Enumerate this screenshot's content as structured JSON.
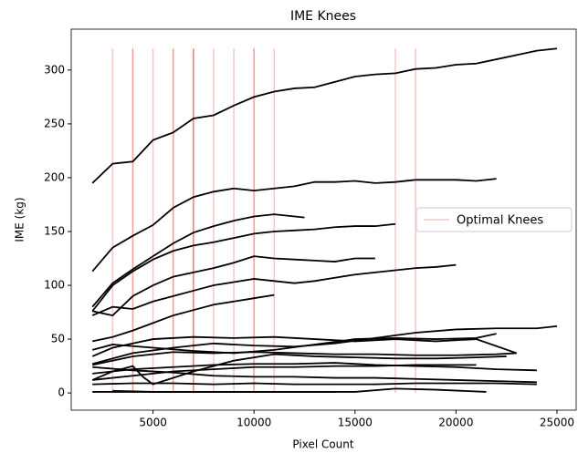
{
  "chart_data": {
    "type": "line",
    "title": "IME Knees",
    "x_label": "Pixel Count",
    "y_label": "IME (kg)",
    "xlim": [
      950,
      25950
    ],
    "ylim": [
      -16,
      338
    ],
    "xticks": [
      5000,
      10000,
      15000,
      20000,
      25000
    ],
    "yticks": [
      0,
      50,
      100,
      150,
      200,
      250,
      300
    ],
    "line_color": "#000000",
    "series": [
      {
        "x": [
          2000,
          3000,
          4000,
          5000,
          6000,
          7000,
          8000,
          9000,
          10000,
          11000,
          12000,
          13000,
          14000,
          15000,
          16000,
          17000,
          18000,
          19000,
          20000,
          21000,
          22000,
          23000,
          24000,
          25000
        ],
        "values": [
          195,
          213,
          215,
          235,
          242,
          255,
          258,
          267,
          275,
          280,
          283,
          284,
          289,
          294,
          296,
          297,
          301,
          302,
          305,
          306,
          310,
          314,
          318,
          320
        ]
      },
      {
        "x": [
          2000,
          3000,
          4000,
          5000,
          6000,
          7000,
          8000,
          9000,
          10000,
          11000,
          12000,
          13000,
          14000,
          15000,
          16000,
          17000,
          18000,
          19000,
          20000,
          21000,
          22000
        ],
        "values": [
          113,
          135,
          146,
          156,
          172,
          182,
          187,
          190,
          188,
          190,
          192,
          196,
          196,
          197,
          195,
          196,
          198,
          198,
          198,
          197,
          199
        ]
      },
      {
        "x": [
          2000,
          3000,
          4000,
          5000,
          6000,
          7000,
          8000,
          9000,
          10000,
          11000,
          12500
        ],
        "values": [
          80,
          102,
          115,
          127,
          139,
          149,
          155,
          160,
          164,
          166,
          163
        ]
      },
      {
        "x": [
          2000,
          3000,
          4000,
          5000,
          6000,
          7000,
          8000,
          9000,
          10000,
          11000,
          12000,
          13000,
          14000,
          15000,
          16000,
          17000
        ],
        "values": [
          76,
          100,
          113,
          124,
          132,
          137,
          140,
          144,
          148,
          150,
          151,
          152,
          154,
          155,
          155,
          157
        ]
      },
      {
        "x": [
          2000,
          3000,
          4000,
          5000,
          6000,
          7000,
          8000,
          9000,
          10000,
          11000,
          12000,
          13000,
          14000,
          15000,
          16000
        ],
        "values": [
          76,
          72,
          90,
          100,
          108,
          112,
          116,
          121,
          127,
          125,
          124,
          123,
          122,
          125,
          125
        ]
      },
      {
        "x": [
          2000,
          3000,
          4000,
          5000,
          6000,
          7000,
          8000,
          9000,
          10000,
          11000,
          12000,
          13000,
          14000,
          15000,
          16000,
          17000,
          18000,
          19000,
          20000
        ],
        "values": [
          72,
          80,
          78,
          85,
          90,
          95,
          100,
          103,
          106,
          104,
          102,
          104,
          107,
          110,
          112,
          114,
          116,
          117,
          119
        ]
      },
      {
        "x": [
          2000,
          3000,
          4000,
          5000,
          6000,
          7000,
          8000,
          9000,
          10000,
          11000
        ],
        "values": [
          48,
          52,
          58,
          65,
          72,
          77,
          82,
          85,
          88,
          91
        ]
      },
      {
        "x": [
          2000,
          4000,
          6000,
          8000,
          10000,
          12000,
          14000,
          16000,
          18000,
          20000,
          22000,
          24000,
          25000
        ],
        "values": [
          27,
          37,
          42,
          46,
          44,
          43,
          46,
          51,
          56,
          59,
          60,
          60,
          62
        ]
      },
      {
        "x": [
          2000,
          3000,
          5000,
          7000,
          9000,
          11000,
          13000,
          15000,
          17000,
          19000,
          21000,
          22000
        ],
        "values": [
          40,
          45,
          42,
          39,
          37,
          40,
          45,
          50,
          51,
          50,
          51,
          55
        ]
      },
      {
        "x": [
          2000,
          3000,
          4000,
          5000,
          7000,
          9000,
          11000,
          13000,
          15000,
          17000,
          19000,
          21000,
          23000
        ],
        "values": [
          34,
          42,
          46,
          50,
          52,
          51,
          52,
          50,
          48,
          50,
          48,
          50,
          37
        ]
      },
      {
        "x": [
          2000,
          4000,
          6000,
          8000,
          10000,
          12000,
          14000,
          16000,
          18000,
          20000,
          22000,
          23000
        ],
        "values": [
          26,
          34,
          38,
          37,
          38,
          37,
          36,
          36,
          35,
          35,
          36,
          37
        ]
      },
      {
        "x": [
          2000,
          3000,
          4000,
          4500,
          5000,
          7000,
          9000,
          11000,
          13000,
          15000,
          17000,
          19000,
          21000,
          22500
        ],
        "values": [
          12,
          20,
          25,
          15,
          8,
          20,
          30,
          36,
          34,
          33,
          32,
          32,
          33,
          34
        ]
      },
      {
        "x": [
          2000,
          4000,
          6000,
          8000,
          10000,
          12000,
          14000,
          16000,
          18000,
          20000,
          22000,
          24000
        ],
        "values": [
          18,
          22,
          24,
          26,
          27,
          27,
          28,
          26,
          25,
          24,
          22,
          21
        ]
      },
      {
        "x": [
          2000,
          4000,
          6000,
          8000,
          10000,
          12000,
          14000,
          16000,
          18000,
          20000,
          21000
        ],
        "values": [
          12,
          16,
          20,
          22,
          24,
          24,
          25,
          25,
          26,
          26,
          26
        ]
      },
      {
        "x": [
          2000,
          4000,
          6000,
          8000,
          10000,
          12000,
          14000,
          16000,
          18000,
          20000,
          22000,
          24000
        ],
        "values": [
          24,
          21,
          19,
          16,
          15,
          15,
          14,
          14,
          13,
          12,
          11,
          10
        ]
      },
      {
        "x": [
          2000,
          4000,
          6000,
          8000,
          10000,
          12000,
          14000,
          16000,
          18000,
          20000,
          22000,
          24000
        ],
        "values": [
          8,
          9,
          9,
          8,
          9,
          8,
          8,
          8,
          9,
          9,
          9,
          8
        ]
      },
      {
        "x": [
          2000,
          4000,
          6000,
          8000,
          10000,
          12000,
          14000
        ],
        "values": [
          1,
          1,
          1,
          1,
          1,
          1,
          1
        ]
      },
      {
        "x": [
          3000,
          5000,
          7000,
          9000,
          11000,
          13000,
          15000,
          17000,
          19000,
          21500
        ],
        "values": [
          2,
          1,
          1,
          1,
          1,
          1,
          1,
          4,
          3,
          1
        ]
      }
    ],
    "knees": [
      3000,
      4000,
      4000,
      5000,
      6000,
      6000,
      7000,
      7000,
      7000,
      8000,
      9000,
      10000,
      10000,
      11000,
      17000,
      18000
    ],
    "knee_top": 320,
    "knee_color": "#e8423c",
    "knee_opacity": 0.3,
    "legend": {
      "label": "Optimal Knees",
      "position": "center right"
    }
  }
}
